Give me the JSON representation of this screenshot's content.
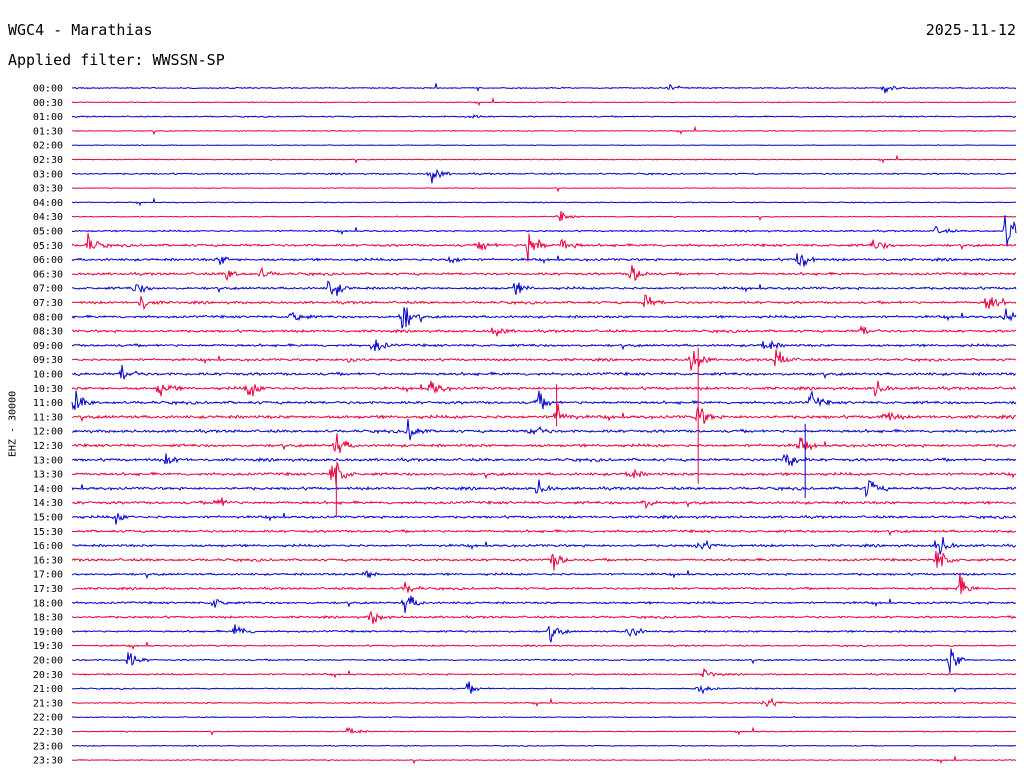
{
  "header": {
    "station": "WGC4 - Marathias",
    "date": "2025-11-12",
    "filter_label": "Applied filter: WWSSN-SP"
  },
  "chart_data": {
    "type": "line",
    "title": "WGC4 - Marathias",
    "ylabel": "EHZ - 30000",
    "ytick_labels": [
      "00:00",
      "00:30",
      "01:00",
      "01:30",
      "02:00",
      "02:30",
      "03:00",
      "03:30",
      "04:00",
      "04:30",
      "05:00",
      "05:30",
      "06:00",
      "06:30",
      "07:00",
      "07:30",
      "08:00",
      "08:30",
      "09:00",
      "09:30",
      "10:00",
      "10:30",
      "11:00",
      "11:30",
      "12:00",
      "12:30",
      "13:00",
      "13:30",
      "14:00",
      "14:30",
      "15:00",
      "15:30",
      "16:00",
      "16:30",
      "17:00",
      "17:30",
      "18:00",
      "18:30",
      "19:00",
      "19:30",
      "20:00",
      "20:30",
      "21:00",
      "21:30",
      "22:00",
      "22:30",
      "23:00",
      "23:30"
    ],
    "line_colors": [
      "#0000cc",
      "#e8003c"
    ],
    "xlim": [
      0,
      30
    ],
    "x_unit": "minutes",
    "noise_level": [
      0.4,
      0.3,
      0.4,
      0.3,
      0.2,
      0.3,
      0.5,
      0.2,
      0.3,
      0.3,
      0.5,
      0.8,
      0.8,
      0.8,
      0.8,
      0.8,
      0.8,
      0.8,
      0.8,
      0.8,
      0.9,
      0.9,
      0.9,
      1.0,
      0.9,
      0.9,
      0.9,
      0.9,
      0.9,
      0.9,
      0.8,
      0.8,
      0.8,
      0.8,
      0.7,
      0.7,
      0.7,
      0.7,
      0.6,
      0.5,
      0.5,
      0.5,
      0.4,
      0.4,
      0.3,
      0.3,
      0.3,
      0.3
    ],
    "events": [
      {
        "trace": "00:00",
        "minute": 25.8,
        "amplitude": 4
      },
      {
        "trace": "00:00",
        "minute": 19.0,
        "amplitude": 2
      },
      {
        "trace": "01:00",
        "minute": 12.6,
        "amplitude": 2
      },
      {
        "trace": "03:00",
        "minute": 11.4,
        "amplitude": 8
      },
      {
        "trace": "04:30",
        "minute": 15.5,
        "amplitude": 4
      },
      {
        "trace": "05:00",
        "minute": 29.7,
        "amplitude": 18
      },
      {
        "trace": "05:00",
        "minute": 27.5,
        "amplitude": 4
      },
      {
        "trace": "05:30",
        "minute": 0.5,
        "amplitude": 8
      },
      {
        "trace": "05:30",
        "minute": 14.5,
        "amplitude": 18
      },
      {
        "trace": "05:30",
        "minute": 15.6,
        "amplitude": 6
      },
      {
        "trace": "05:30",
        "minute": 13.0,
        "amplitude": 5
      },
      {
        "trace": "05:30",
        "minute": 25.5,
        "amplitude": 6
      },
      {
        "trace": "06:00",
        "minute": 23.1,
        "amplitude": 9
      },
      {
        "trace": "06:00",
        "minute": 4.7,
        "amplitude": 4
      },
      {
        "trace": "06:00",
        "minute": 12.0,
        "amplitude": 4
      },
      {
        "trace": "06:30",
        "minute": 17.8,
        "amplitude": 9
      },
      {
        "trace": "06:30",
        "minute": 4.9,
        "amplitude": 5
      },
      {
        "trace": "06:30",
        "minute": 6.0,
        "amplitude": 4
      },
      {
        "trace": "07:00",
        "minute": 8.2,
        "amplitude": 11
      },
      {
        "trace": "07:00",
        "minute": 2.0,
        "amplitude": 6
      },
      {
        "trace": "07:00",
        "minute": 14.1,
        "amplitude": 5
      },
      {
        "trace": "07:30",
        "minute": 18.2,
        "amplitude": 7
      },
      {
        "trace": "07:30",
        "minute": 29.1,
        "amplitude": 10
      },
      {
        "trace": "07:30",
        "minute": 2.2,
        "amplitude": 6
      },
      {
        "trace": "08:00",
        "minute": 10.5,
        "amplitude": 14
      },
      {
        "trace": "08:00",
        "minute": 7.0,
        "amplitude": 6
      },
      {
        "trace": "08:00",
        "minute": 29.7,
        "amplitude": 6
      },
      {
        "trace": "08:30",
        "minute": 13.4,
        "amplitude": 5
      },
      {
        "trace": "08:30",
        "minute": 25.1,
        "amplitude": 4
      },
      {
        "trace": "09:00",
        "minute": 9.6,
        "amplitude": 7
      },
      {
        "trace": "09:00",
        "minute": 22.0,
        "amplitude": 6
      },
      {
        "trace": "09:30",
        "minute": 19.7,
        "amplitude": 12
      },
      {
        "trace": "09:30",
        "minute": 22.4,
        "amplitude": 9
      },
      {
        "trace": "09:30",
        "minute": 8.8,
        "amplitude": 4
      },
      {
        "trace": "10:00",
        "minute": 1.6,
        "amplitude": 7
      },
      {
        "trace": "10:30",
        "minute": 5.6,
        "amplitude": 8
      },
      {
        "trace": "10:30",
        "minute": 2.8,
        "amplitude": 7
      },
      {
        "trace": "10:30",
        "minute": 11.4,
        "amplitude": 7
      },
      {
        "trace": "10:30",
        "minute": 25.5,
        "amplitude": 7
      },
      {
        "trace": "11:00",
        "minute": 0.1,
        "amplitude": 8
      },
      {
        "trace": "11:00",
        "minute": 14.8,
        "amplitude": 7
      },
      {
        "trace": "11:00",
        "minute": 23.5,
        "amplitude": 7
      },
      {
        "trace": "11:30",
        "minute": 15.4,
        "amplitude": 9
      },
      {
        "trace": "11:30",
        "minute": 19.9,
        "amplitude": 10
      },
      {
        "trace": "11:30",
        "minute": 25.8,
        "amplitude": 6
      },
      {
        "trace": "12:00",
        "minute": 10.7,
        "amplitude": 9
      },
      {
        "trace": "12:00",
        "minute": 14.6,
        "amplitude": 7
      },
      {
        "trace": "12:30",
        "minute": 8.4,
        "amplitude": 10
      },
      {
        "trace": "12:30",
        "minute": 23.1,
        "amplitude": 7
      },
      {
        "trace": "13:00",
        "minute": 22.7,
        "amplitude": 10
      },
      {
        "trace": "13:00",
        "minute": 3.0,
        "amplitude": 4
      },
      {
        "trace": "13:30",
        "minute": 8.3,
        "amplitude": 16
      },
      {
        "trace": "13:30",
        "minute": 17.7,
        "amplitude": 5
      },
      {
        "trace": "14:00",
        "minute": 25.3,
        "amplitude": 9
      },
      {
        "trace": "14:00",
        "minute": 14.8,
        "amplitude": 6
      },
      {
        "trace": "14:30",
        "minute": 4.6,
        "amplitude": 6
      },
      {
        "trace": "14:30",
        "minute": 18.1,
        "amplitude": 6
      },
      {
        "trace": "15:00",
        "minute": 1.4,
        "amplitude": 4
      },
      {
        "trace": "16:00",
        "minute": 19.9,
        "amplitude": 6
      },
      {
        "trace": "16:00",
        "minute": 27.5,
        "amplitude": 11
      },
      {
        "trace": "16:30",
        "minute": 15.3,
        "amplitude": 8
      },
      {
        "trace": "16:30",
        "minute": 27.5,
        "amplitude": 11
      },
      {
        "trace": "17:00",
        "minute": 9.3,
        "amplitude": 6
      },
      {
        "trace": "17:30",
        "minute": 28.2,
        "amplitude": 9
      },
      {
        "trace": "17:30",
        "minute": 10.6,
        "amplitude": 5
      },
      {
        "trace": "18:00",
        "minute": 10.6,
        "amplitude": 10
      },
      {
        "trace": "18:00",
        "minute": 4.5,
        "amplitude": 5
      },
      {
        "trace": "18:30",
        "minute": 9.5,
        "amplitude": 6
      },
      {
        "trace": "19:00",
        "minute": 5.2,
        "amplitude": 7
      },
      {
        "trace": "19:00",
        "minute": 15.2,
        "amplitude": 7
      },
      {
        "trace": "19:00",
        "minute": 17.7,
        "amplitude": 7
      },
      {
        "trace": "20:00",
        "minute": 1.8,
        "amplitude": 7
      },
      {
        "trace": "20:00",
        "minute": 27.9,
        "amplitude": 11
      },
      {
        "trace": "20:30",
        "minute": 20.1,
        "amplitude": 4
      },
      {
        "trace": "21:00",
        "minute": 12.6,
        "amplitude": 4
      },
      {
        "trace": "21:00",
        "minute": 19.9,
        "amplitude": 5
      },
      {
        "trace": "21:30",
        "minute": 22.0,
        "amplitude": 6
      },
      {
        "trace": "22:30",
        "minute": 8.8,
        "amplitude": 4
      }
    ],
    "spikes": [
      {
        "trace": "09:30",
        "minute": 19.9,
        "up": 12,
        "down": 124
      },
      {
        "trace": "10:30",
        "minute": 15.4,
        "up": 4,
        "down": 38
      },
      {
        "trace": "13:00",
        "minute": 23.3,
        "up": 36,
        "down": 38
      },
      {
        "trace": "13:30",
        "minute": 8.4,
        "up": 8,
        "down": 42
      }
    ]
  }
}
